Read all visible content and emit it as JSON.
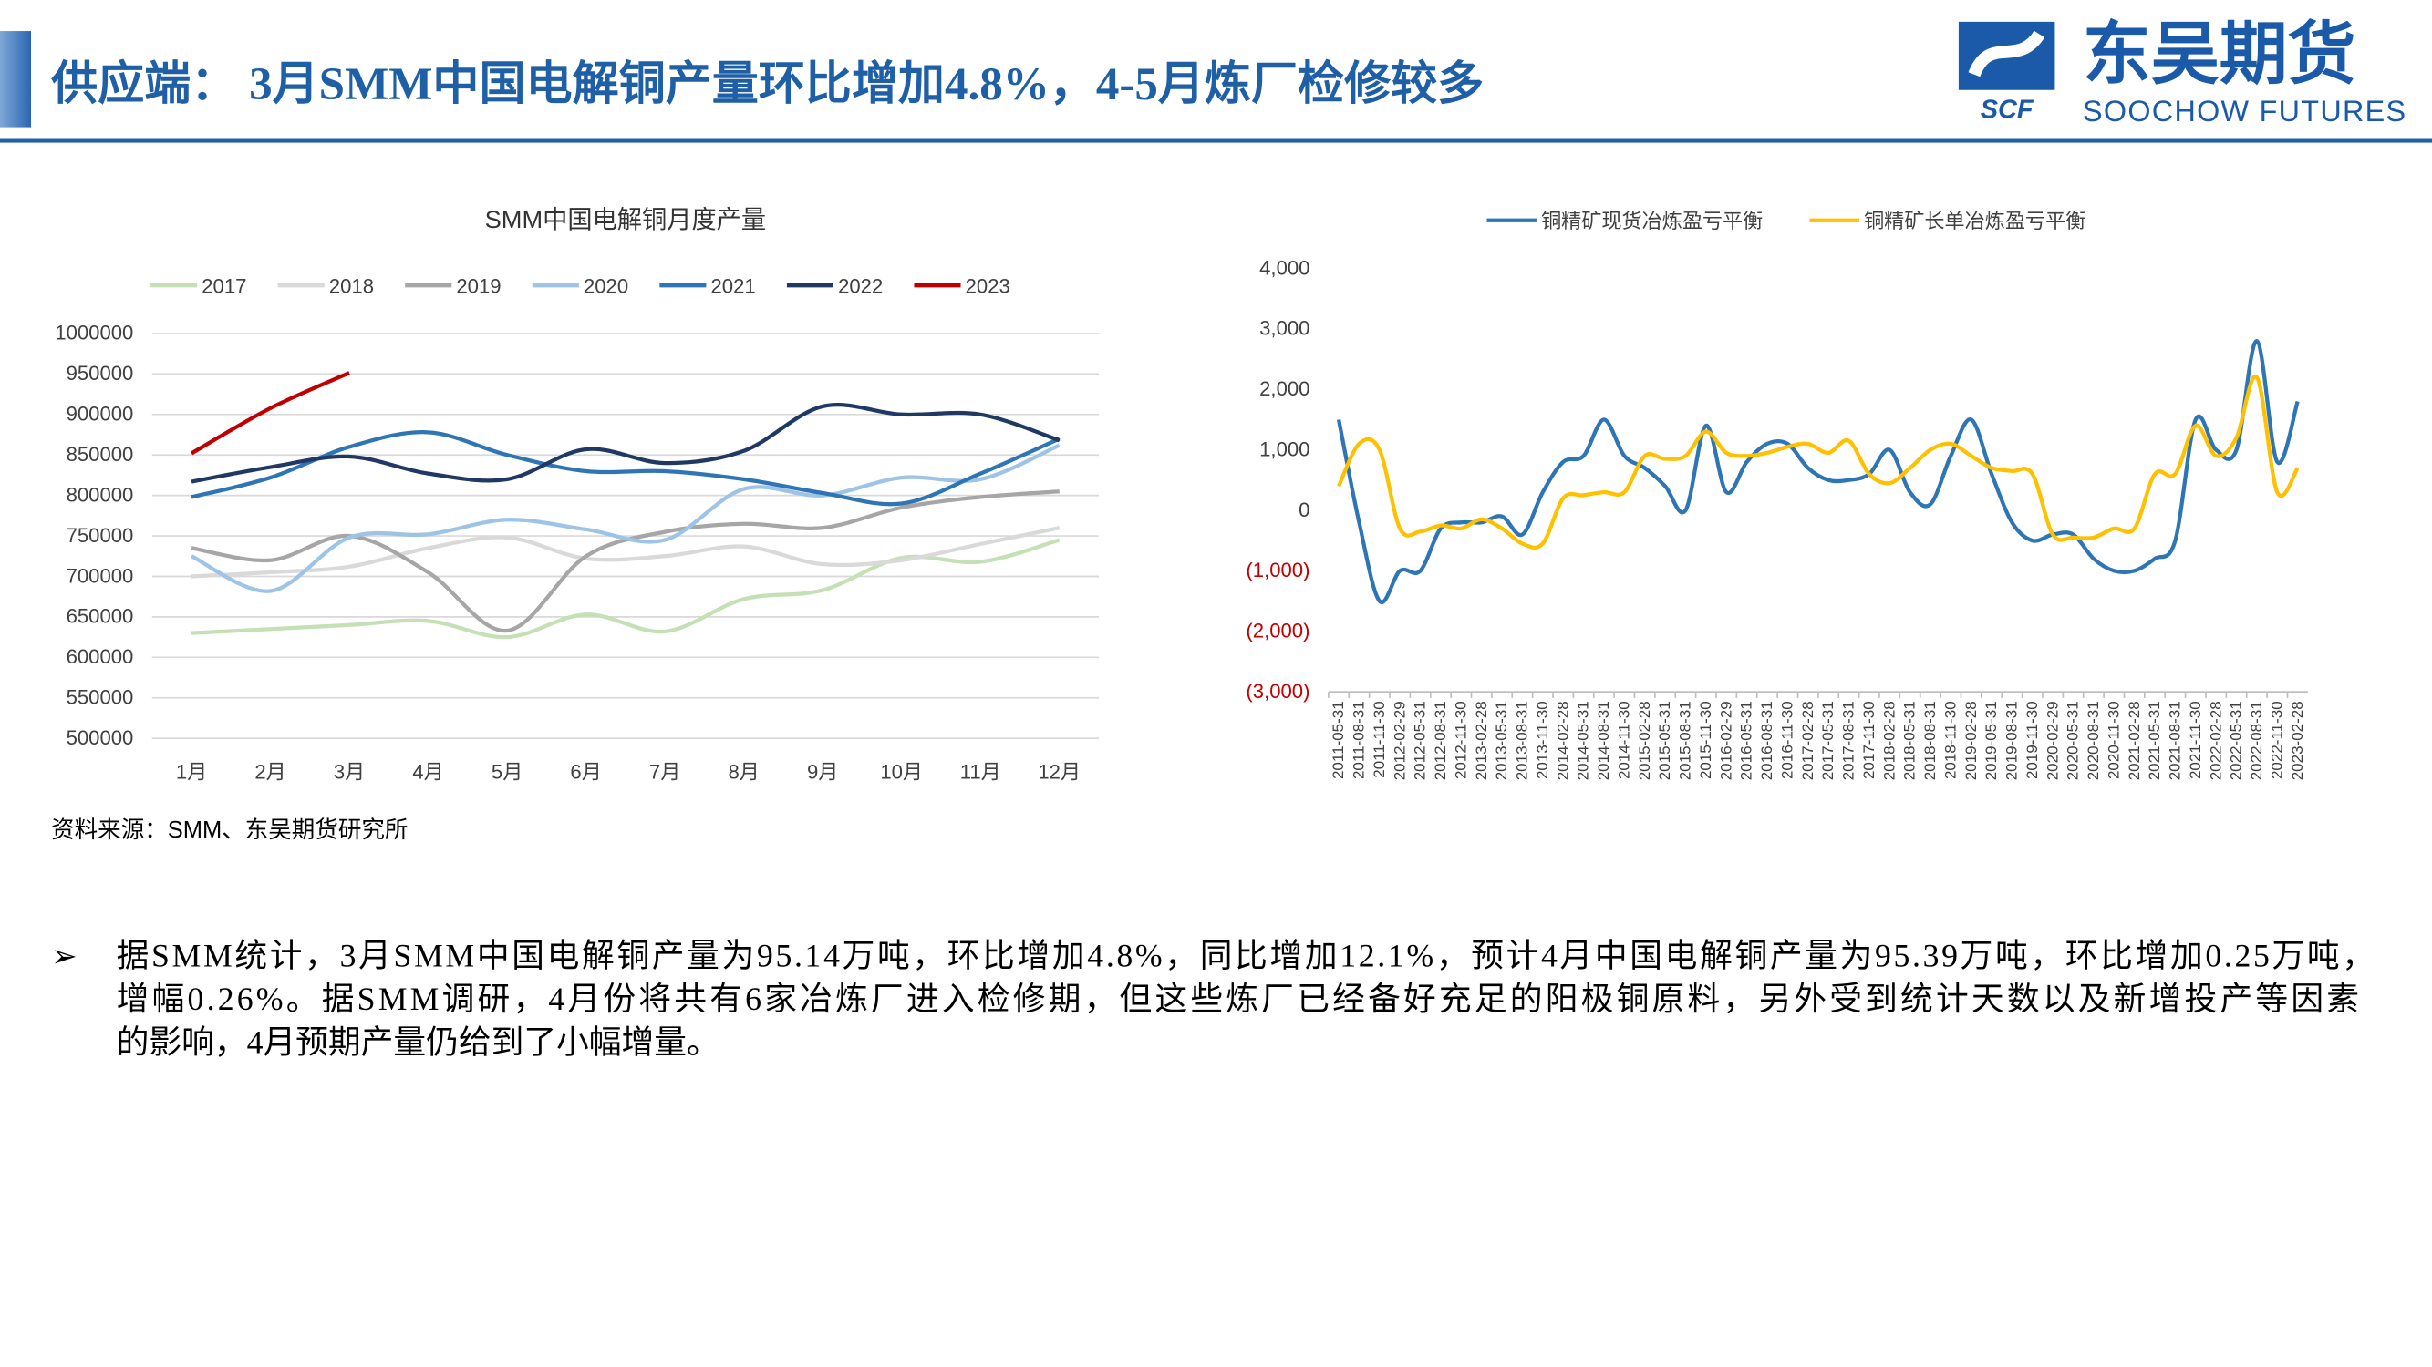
{
  "header": {
    "title": "供应端： 3月SMM中国电解铜产量环比增加4.8%，4-5月炼厂检修较多",
    "logo": {
      "name": "东吴期货",
      "english": "SOOCHOW FUTURES",
      "abbr": "SCF"
    }
  },
  "source": "资料来源：SMM、东吴期货研究所",
  "body": {
    "lines": [
      "据SMM统计，3月SMM中国电解铜产量为95.14万吨，环比增加4.8%，同比增加12.1%，预计4月中国电解铜产量为95.39万吨，环比增加0.25万吨，",
      "增幅0.26%。据SMM调研，4月份将共有6家冶炼厂进入检修期，但这些炼厂已经备好充足的阳极铜原料，另外受到统计天数以及新增投产等因素",
      "的影响，4月预期产量仍给到了小幅增量。"
    ]
  },
  "chart_data": [
    {
      "type": "line",
      "title": "SMM中国电解铜月度产量",
      "grid": true,
      "legend": "top",
      "x_label_rotate": false,
      "categories": [
        "1月",
        "2月",
        "3月",
        "4月",
        "5月",
        "6月",
        "7月",
        "8月",
        "9月",
        "10月",
        "11月",
        "12月"
      ],
      "ylim": [
        500000,
        1000000
      ],
      "yticks": [
        500000,
        550000,
        600000,
        650000,
        700000,
        750000,
        800000,
        850000,
        900000,
        950000,
        1000000
      ],
      "series": [
        {
          "name": "2017",
          "color": "#c5e0b4",
          "values": [
            630000,
            635000,
            640000,
            645000,
            625000,
            653000,
            632000,
            672000,
            683000,
            723000,
            718000,
            745000
          ]
        },
        {
          "name": "2018",
          "color": "#d9d9d9",
          "values": [
            700000,
            705000,
            712000,
            735000,
            748000,
            722000,
            725000,
            737000,
            715000,
            720000,
            740000,
            760000
          ]
        },
        {
          "name": "2019",
          "color": "#a6a6a6",
          "values": [
            735000,
            720000,
            750000,
            705000,
            633000,
            725000,
            755000,
            765000,
            760000,
            785000,
            798000,
            805000
          ]
        },
        {
          "name": "2020",
          "color": "#9dc3e6",
          "values": [
            725000,
            682000,
            748000,
            752000,
            770000,
            758000,
            745000,
            808000,
            800000,
            822000,
            820000,
            862000
          ]
        },
        {
          "name": "2021",
          "color": "#2e75b6",
          "values": [
            798000,
            822000,
            860000,
            878000,
            850000,
            830000,
            830000,
            820000,
            803000,
            790000,
            827000,
            870000
          ]
        },
        {
          "name": "2022",
          "color": "#1f3864",
          "values": [
            817000,
            835000,
            848000,
            827000,
            820000,
            857000,
            840000,
            855000,
            910000,
            900000,
            900000,
            868000
          ]
        },
        {
          "name": "2023",
          "color": "#c00000",
          "values": [
            852000,
            907800,
            951400,
            null,
            null,
            null,
            null,
            null,
            null,
            null,
            null,
            null
          ]
        }
      ]
    },
    {
      "type": "line",
      "grid": false,
      "legend": "top",
      "x_label_rotate": true,
      "categories": [
        "2011-05-31",
        "2011-08-31",
        "2011-11-30",
        "2012-02-29",
        "2012-05-31",
        "2012-08-31",
        "2012-11-30",
        "2013-02-28",
        "2013-05-31",
        "2013-08-31",
        "2013-11-30",
        "2014-02-28",
        "2014-05-31",
        "2014-08-31",
        "2014-11-30",
        "2015-02-28",
        "2015-05-31",
        "2015-08-31",
        "2015-11-30",
        "2016-02-29",
        "2016-05-31",
        "2016-08-31",
        "2016-11-30",
        "2017-02-28",
        "2017-05-31",
        "2017-08-31",
        "2017-11-30",
        "2018-02-28",
        "2018-05-31",
        "2018-08-31",
        "2018-11-30",
        "2019-02-28",
        "2019-05-31",
        "2019-08-31",
        "2019-11-30",
        "2020-02-29",
        "2020-05-31",
        "2020-08-31",
        "2020-11-30",
        "2021-02-28",
        "2021-05-31",
        "2021-08-31",
        "2021-11-30",
        "2022-02-28",
        "2022-05-31",
        "2022-08-31",
        "2022-11-30",
        "2023-02-28"
      ],
      "ylim": [
        -3000,
        4000
      ],
      "yticks": [
        {
          "value": -3000,
          "label": "(3,000)"
        },
        {
          "value": -2000,
          "label": "(2,000)"
        },
        {
          "value": -1000,
          "label": "(1,000)"
        },
        0,
        {
          "value": 1000,
          "label": "1,000"
        },
        {
          "value": 2000,
          "label": "2,000"
        },
        {
          "value": 3000,
          "label": "3,000"
        },
        {
          "value": 4000,
          "label": "4,000"
        }
      ],
      "series": [
        {
          "name": "铜精矿现货冶炼盈亏平衡",
          "color": "#2e75b6",
          "values": [
            1500,
            -200,
            -1500,
            -1000,
            -1000,
            -300,
            -200,
            -200,
            -100,
            -400,
            300,
            800,
            900,
            1500,
            900,
            700,
            400,
            0,
            1400,
            300,
            800,
            1100,
            1100,
            700,
            500,
            500,
            600,
            1000,
            300,
            100,
            900,
            1500,
            600,
            -200,
            -500,
            -400,
            -400,
            -800,
            -1000,
            -1000,
            -800,
            -500,
            1500,
            1000,
            1000,
            2800,
            800,
            1800
          ]
        },
        {
          "name": "铜精矿长单冶炼盈亏平衡",
          "color": "#ffc000",
          "values": [
            400,
            1100,
            1000,
            -300,
            -350,
            -250,
            -300,
            -150,
            -300,
            -550,
            -550,
            200,
            250,
            300,
            300,
            900,
            850,
            900,
            1300,
            950,
            900,
            950,
            1050,
            1100,
            950,
            1150,
            600,
            450,
            700,
            1000,
            1100,
            900,
            700,
            650,
            600,
            -400,
            -450,
            -450,
            -300,
            -300,
            600,
            600,
            1400,
            900,
            1200,
            2200,
            300,
            700
          ]
        }
      ]
    }
  ]
}
